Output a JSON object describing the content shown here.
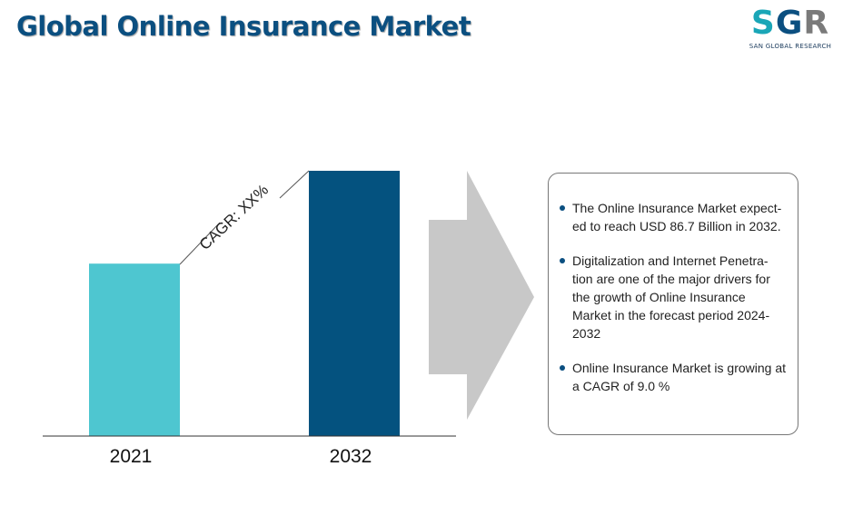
{
  "header": {
    "title": "Global Online Insurance Market"
  },
  "logo": {
    "text": "SGR",
    "subtitle": "SAN GLOBAL RESEARCH",
    "colors": [
      "#1aa6b7",
      "#0b4f80",
      "#7a7a7a"
    ]
  },
  "chart_data": {
    "type": "bar",
    "categories": [
      "2021",
      "2032"
    ],
    "values": [
      0.65,
      1.0
    ],
    "colors": [
      "#4ec6d0",
      "#04527f"
    ],
    "annotation": "CAGR: XX%",
    "grid": false,
    "values_note_scale": "relative"
  },
  "arrow": {
    "color": "#c8c8c8"
  },
  "info": {
    "bullets": [
      "The Online Insurance Market expect-ed to reach USD 86.7 Billion in 2032.",
      "Digitalization and Internet Penetra-tion are one of the major drivers for the growth of Online Insurance Market in the forecast period 2024-2032",
      "Online Insurance Market is growing at a CAGR of 9.0 %"
    ]
  }
}
